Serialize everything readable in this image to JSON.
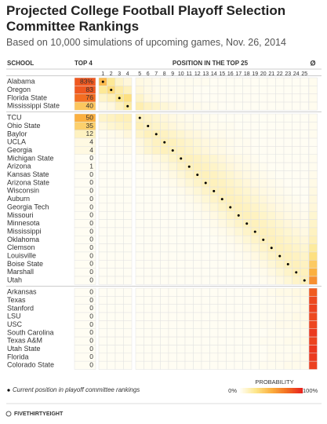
{
  "chart_data": {
    "type": "heatmap",
    "title": "Projected College Football Playoff Selection Committee Rankings",
    "subtitle": "Based on 10,000 simulations of upcoming games, Nov. 26, 2014",
    "school_header": "SCHOOL",
    "top4_header": "TOP 4",
    "position_header": "POSITION IN THE TOP 25",
    "unranked_label": "Ø",
    "positions": [
      1,
      2,
      3,
      4,
      5,
      6,
      7,
      8,
      9,
      10,
      11,
      12,
      13,
      14,
      15,
      16,
      17,
      18,
      19,
      20,
      21,
      22,
      23,
      24,
      25
    ],
    "colormap": [
      "#fffdf3",
      "#fde68a",
      "#fbb040",
      "#f37021",
      "#e8251f"
    ],
    "groups": [
      {
        "teams": [
          "Alabama",
          "Oregon",
          "Florida State",
          "Mississippi State"
        ],
        "top4": [
          83,
          83,
          76,
          40
        ],
        "value_labels": [
          "83%",
          "83",
          "76",
          "40"
        ],
        "current": [
          1,
          2,
          3,
          4
        ],
        "values": [
          [
            45,
            22,
            10,
            6,
            4,
            3,
            2,
            2,
            1,
            1,
            1,
            1,
            1,
            0,
            0,
            0,
            0,
            0,
            0,
            0,
            0,
            0,
            0,
            0,
            0,
            1
          ],
          [
            22,
            30,
            18,
            13,
            6,
            3,
            2,
            2,
            1,
            1,
            1,
            0,
            0,
            0,
            0,
            0,
            0,
            0,
            0,
            0,
            0,
            0,
            0,
            0,
            0,
            1
          ],
          [
            10,
            14,
            24,
            28,
            10,
            5,
            3,
            2,
            1,
            1,
            1,
            0,
            0,
            0,
            0,
            0,
            0,
            0,
            0,
            0,
            0,
            0,
            0,
            0,
            0,
            1
          ],
          [
            3,
            5,
            12,
            20,
            16,
            12,
            10,
            7,
            5,
            3,
            2,
            2,
            1,
            1,
            0,
            0,
            0,
            0,
            0,
            0,
            0,
            0,
            0,
            0,
            0,
            1
          ]
        ]
      },
      {
        "teams": [
          "TCU",
          "Ohio State",
          "Baylor",
          "UCLA",
          "Georgia",
          "Michigan State",
          "Arizona",
          "Kansas State",
          "Arizona State",
          "Wisconsin",
          "Auburn",
          "Georgia Tech",
          "Missouri",
          "Minnesota",
          "Mississippi",
          "Oklahoma",
          "Clemson",
          "Louisville",
          "Boise State",
          "Marshall",
          "Utah"
        ],
        "top4": [
          50,
          35,
          12,
          4,
          4,
          0,
          1,
          0,
          0,
          0,
          0,
          0,
          0,
          0,
          0,
          0,
          0,
          0,
          0,
          0,
          0
        ],
        "current": [
          5,
          6,
          7,
          8,
          9,
          10,
          11,
          12,
          13,
          14,
          15,
          16,
          17,
          18,
          19,
          20,
          21,
          22,
          23,
          24,
          25
        ],
        "values": [
          [
            10,
            12,
            14,
            14,
            12,
            10,
            8,
            6,
            4,
            3,
            2,
            2,
            1,
            1,
            0,
            0,
            0,
            0,
            0,
            0,
            0,
            0,
            0,
            0,
            0,
            1
          ],
          [
            5,
            8,
            10,
            12,
            14,
            12,
            10,
            8,
            6,
            4,
            3,
            2,
            2,
            1,
            1,
            1,
            0,
            0,
            0,
            0,
            0,
            0,
            0,
            0,
            0,
            1
          ],
          [
            1,
            2,
            3,
            6,
            10,
            13,
            14,
            12,
            10,
            8,
            6,
            5,
            3,
            2,
            2,
            1,
            1,
            0,
            0,
            0,
            0,
            0,
            0,
            0,
            0,
            1
          ],
          [
            0,
            1,
            1,
            2,
            5,
            9,
            12,
            14,
            13,
            11,
            9,
            7,
            5,
            4,
            3,
            2,
            1,
            1,
            0,
            0,
            0,
            0,
            0,
            0,
            0,
            0
          ],
          [
            0,
            1,
            1,
            2,
            4,
            8,
            11,
            13,
            13,
            12,
            10,
            8,
            6,
            4,
            3,
            2,
            1,
            1,
            0,
            0,
            0,
            0,
            0,
            0,
            0,
            0
          ],
          [
            0,
            0,
            0,
            0,
            1,
            2,
            4,
            7,
            10,
            13,
            13,
            12,
            10,
            8,
            6,
            4,
            3,
            2,
            1,
            0,
            0,
            0,
            0,
            0,
            0,
            1
          ],
          [
            0,
            0,
            0,
            0,
            0,
            1,
            2,
            4,
            7,
            10,
            13,
            13,
            12,
            10,
            8,
            6,
            4,
            3,
            2,
            1,
            0,
            0,
            0,
            0,
            0,
            1
          ],
          [
            0,
            0,
            0,
            0,
            0,
            0,
            1,
            2,
            4,
            7,
            10,
            13,
            13,
            12,
            10,
            8,
            6,
            4,
            3,
            2,
            1,
            0,
            0,
            0,
            0,
            2
          ],
          [
            0,
            0,
            0,
            0,
            0,
            0,
            0,
            1,
            2,
            4,
            7,
            10,
            13,
            13,
            12,
            10,
            8,
            6,
            4,
            3,
            2,
            1,
            0,
            0,
            0,
            3
          ],
          [
            0,
            0,
            0,
            0,
            0,
            0,
            0,
            0,
            1,
            2,
            4,
            7,
            10,
            13,
            13,
            12,
            10,
            8,
            6,
            4,
            3,
            2,
            1,
            0,
            0,
            4
          ],
          [
            0,
            0,
            0,
            0,
            0,
            0,
            0,
            0,
            0,
            1,
            2,
            4,
            7,
            10,
            13,
            13,
            12,
            10,
            8,
            6,
            4,
            3,
            2,
            1,
            0,
            5
          ],
          [
            0,
            0,
            0,
            0,
            0,
            0,
            0,
            0,
            0,
            0,
            1,
            2,
            4,
            7,
            10,
            13,
            13,
            12,
            10,
            8,
            6,
            4,
            3,
            2,
            1,
            6
          ],
          [
            0,
            0,
            0,
            0,
            0,
            0,
            0,
            0,
            0,
            0,
            0,
            1,
            2,
            4,
            7,
            10,
            13,
            13,
            12,
            10,
            8,
            6,
            4,
            3,
            2,
            8
          ],
          [
            0,
            0,
            0,
            0,
            0,
            0,
            0,
            0,
            0,
            0,
            0,
            0,
            1,
            2,
            4,
            7,
            10,
            13,
            13,
            12,
            10,
            8,
            6,
            4,
            3,
            10
          ],
          [
            0,
            0,
            0,
            0,
            0,
            0,
            0,
            0,
            0,
            0,
            0,
            0,
            0,
            1,
            2,
            4,
            7,
            10,
            13,
            13,
            12,
            10,
            8,
            6,
            4,
            12
          ],
          [
            0,
            0,
            0,
            0,
            0,
            0,
            0,
            0,
            0,
            0,
            0,
            0,
            0,
            0,
            1,
            2,
            4,
            7,
            10,
            13,
            13,
            12,
            10,
            8,
            6,
            14
          ],
          [
            0,
            0,
            0,
            0,
            0,
            0,
            0,
            0,
            0,
            0,
            0,
            0,
            0,
            0,
            0,
            1,
            2,
            4,
            7,
            10,
            13,
            13,
            12,
            10,
            8,
            20
          ],
          [
            0,
            0,
            0,
            0,
            0,
            0,
            0,
            0,
            0,
            0,
            0,
            0,
            0,
            0,
            0,
            0,
            1,
            2,
            4,
            7,
            10,
            13,
            13,
            12,
            10,
            28
          ],
          [
            0,
            0,
            0,
            0,
            0,
            0,
            0,
            0,
            0,
            0,
            0,
            0,
            0,
            0,
            0,
            0,
            0,
            1,
            2,
            4,
            7,
            10,
            13,
            13,
            12,
            38
          ],
          [
            0,
            0,
            0,
            0,
            0,
            0,
            0,
            0,
            0,
            0,
            0,
            0,
            0,
            0,
            0,
            0,
            0,
            0,
            1,
            2,
            4,
            7,
            10,
            13,
            13,
            50
          ],
          [
            0,
            0,
            0,
            0,
            0,
            0,
            0,
            0,
            0,
            0,
            0,
            0,
            0,
            0,
            0,
            0,
            0,
            0,
            0,
            1,
            2,
            4,
            7,
            10,
            13,
            63
          ]
        ]
      },
      {
        "teams": [
          "Arkansas",
          "Texas",
          "Stanford",
          "LSU",
          "USC",
          "South Carolina",
          "Texas A&M",
          "Utah State",
          "Florida",
          "Colorado State"
        ],
        "top4": [
          0,
          0,
          0,
          0,
          0,
          0,
          0,
          0,
          0,
          0
        ],
        "values": [
          [
            0,
            0,
            0,
            0,
            0,
            0,
            0,
            0,
            0,
            0,
            0,
            0,
            0,
            0,
            0,
            0,
            0,
            0,
            1,
            1,
            2,
            3,
            3,
            4,
            4,
            82
          ],
          [
            0,
            0,
            0,
            0,
            0,
            0,
            0,
            0,
            0,
            0,
            0,
            0,
            0,
            0,
            0,
            0,
            0,
            0,
            0,
            1,
            1,
            2,
            2,
            3,
            3,
            88
          ],
          [
            0,
            0,
            0,
            0,
            0,
            0,
            0,
            0,
            0,
            0,
            0,
            0,
            0,
            0,
            0,
            0,
            0,
            0,
            0,
            1,
            1,
            1,
            2,
            2,
            3,
            90
          ],
          [
            0,
            0,
            0,
            0,
            0,
            0,
            0,
            0,
            0,
            0,
            0,
            0,
            0,
            0,
            0,
            0,
            0,
            0,
            0,
            1,
            1,
            2,
            2,
            3,
            3,
            88
          ],
          [
            0,
            0,
            0,
            0,
            0,
            0,
            0,
            0,
            0,
            0,
            0,
            0,
            0,
            0,
            0,
            0,
            0,
            0,
            0,
            1,
            1,
            2,
            2,
            2,
            3,
            89
          ],
          [
            0,
            0,
            0,
            0,
            0,
            0,
            0,
            0,
            0,
            0,
            0,
            0,
            0,
            0,
            0,
            0,
            0,
            0,
            0,
            0,
            1,
            1,
            1,
            2,
            2,
            93
          ],
          [
            0,
            0,
            0,
            0,
            0,
            0,
            0,
            0,
            0,
            0,
            0,
            0,
            0,
            0,
            0,
            0,
            0,
            0,
            0,
            1,
            1,
            1,
            2,
            2,
            3,
            90
          ],
          [
            0,
            0,
            0,
            0,
            0,
            0,
            0,
            0,
            0,
            0,
            0,
            0,
            0,
            0,
            0,
            0,
            0,
            0,
            0,
            0,
            1,
            1,
            1,
            1,
            2,
            94
          ],
          [
            0,
            0,
            0,
            0,
            0,
            0,
            0,
            0,
            0,
            0,
            0,
            0,
            0,
            0,
            0,
            0,
            0,
            0,
            0,
            0,
            1,
            1,
            1,
            2,
            2,
            93
          ],
          [
            0,
            0,
            0,
            0,
            0,
            0,
            0,
            0,
            0,
            0,
            0,
            0,
            0,
            0,
            0,
            0,
            0,
            0,
            0,
            1,
            1,
            1,
            2,
            2,
            2,
            91
          ]
        ]
      }
    ],
    "note": "Current position in playoff committee rankings",
    "legend_title": "PROBABILITY",
    "legend_min_label": "0%",
    "legend_max_label": "100%",
    "footer": "FIVETHIRTYEIGHT"
  }
}
